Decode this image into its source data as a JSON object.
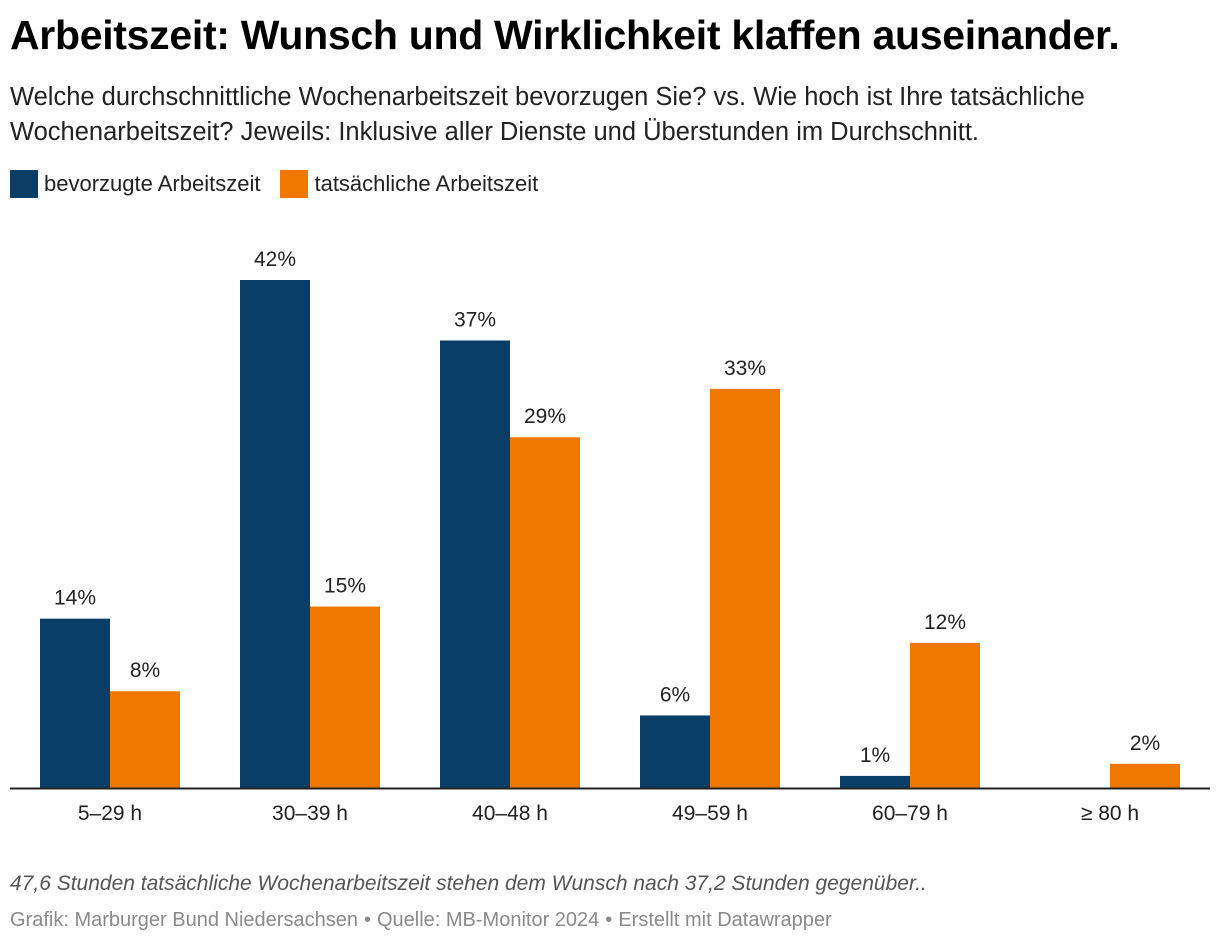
{
  "title": "Arbeitszeit: Wunsch und Wirklichkeit klaffen auseinander.",
  "subtitle": "Welche durchschnittliche Wochenarbeitszeit bevorzugen Sie? vs. Wie hoch ist Ihre tatsächliche Wochenarbeitszeit? Jeweils: Inklusive aller Dienste und Überstunden im Durchschnitt.",
  "legend": [
    {
      "label": "bevorzugte Arbeitszeit",
      "color": "#0b3e66"
    },
    {
      "label": "tatsächliche Arbeitszeit",
      "color": "#f07800"
    }
  ],
  "chart_data": {
    "type": "bar",
    "categories": [
      "5–29 h",
      "30–39 h",
      "40–48 h",
      "49–59 h",
      "60–79 h",
      "≥ 80 h"
    ],
    "series": [
      {
        "name": "bevorzugte Arbeitszeit",
        "color": "#0b3e66",
        "values": [
          14,
          42,
          37,
          6,
          1,
          0
        ],
        "labels": [
          "14%",
          "42%",
          "37%",
          "6%",
          "1%",
          ""
        ]
      },
      {
        "name": "tatsächliche Arbeitszeit",
        "color": "#f07800",
        "values": [
          8,
          15,
          29,
          33,
          12,
          2
        ],
        "labels": [
          "8%",
          "15%",
          "29%",
          "33%",
          "12%",
          "2%"
        ]
      }
    ],
    "ylim": [
      0,
      42
    ],
    "grid": false,
    "legend_position": "top-left"
  },
  "note": "47,6 Stunden tatsächliche Wochenarbeitszeit stehen dem Wunsch nach 37,2 Stunden gegenüber..",
  "source": {
    "grafik": "Grafik: Marburger Bund Niedersachsen",
    "quelle": "Quelle: MB-Monitor 2024",
    "tool": "Erstellt mit Datawrapper",
    "separator": "•"
  }
}
